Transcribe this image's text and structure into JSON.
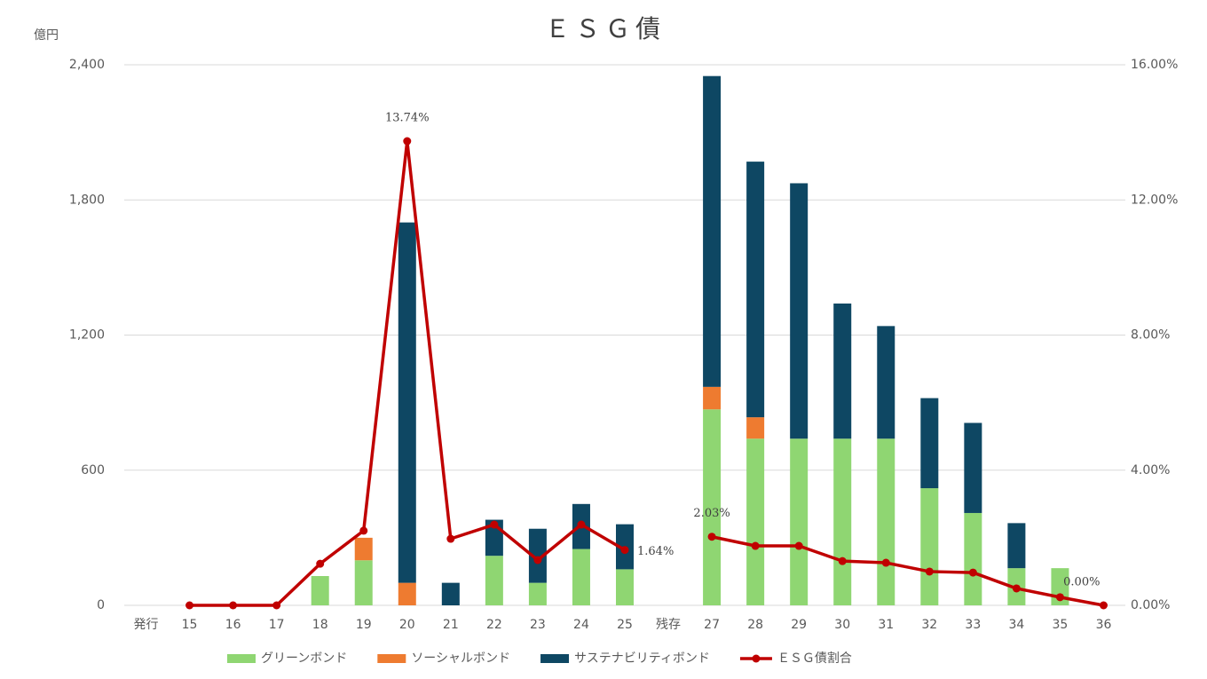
{
  "chart_data": {
    "type": "bar",
    "title": "ＥＳＧ債",
    "y_label": "億円",
    "categories": [
      "発行",
      "15",
      "16",
      "17",
      "18",
      "19",
      "20",
      "21",
      "22",
      "23",
      "24",
      "25",
      "残存",
      "27",
      "28",
      "29",
      "30",
      "31",
      "32",
      "33",
      "34",
      "35",
      "36"
    ],
    "series": [
      {
        "name": "グリーンボンド",
        "color": "#8fd672",
        "values": [
          null,
          null,
          null,
          null,
          130,
          200,
          null,
          null,
          220,
          100,
          250,
          160,
          null,
          870,
          740,
          740,
          740,
          740,
          520,
          410,
          165,
          165,
          null
        ]
      },
      {
        "name": "ソーシャルボンド",
        "color": "#ee7b30",
        "values": [
          null,
          null,
          null,
          null,
          null,
          100,
          100,
          null,
          null,
          null,
          null,
          null,
          null,
          100,
          95,
          null,
          null,
          null,
          null,
          null,
          null,
          null,
          null
        ]
      },
      {
        "name": "サステナビリティボンド",
        "color": "#0e4763",
        "values": [
          null,
          null,
          null,
          null,
          null,
          null,
          1600,
          100,
          160,
          240,
          200,
          200,
          null,
          1380,
          1135,
          1134,
          600,
          500,
          400,
          400,
          200,
          null,
          null
        ]
      },
      {
        "name": "ＥＳＧ債割合",
        "color": "#c00000",
        "type": "line",
        "axis": "y2",
        "values": [
          null,
          0,
          0,
          0,
          1.23,
          2.21,
          13.74,
          1.97,
          2.39,
          1.34,
          2.39,
          1.64,
          null,
          2.03,
          1.76,
          1.76,
          1.31,
          1.26,
          1.0,
          0.97,
          0.5,
          0.24,
          0
        ],
        "value_labels": [
          null,
          null,
          null,
          null,
          null,
          null,
          "13.74%",
          null,
          null,
          null,
          null,
          "1.64%",
          null,
          "2.03%",
          null,
          null,
          null,
          null,
          null,
          null,
          null,
          null,
          "0.00%"
        ]
      }
    ],
    "ylim": [
      0,
      2400
    ],
    "yticks": [
      0,
      600,
      {
        "value": 1200,
        "label": "1,200"
      },
      {
        "value": 1800,
        "label": "1,800"
      },
      {
        "value": 2400,
        "label": "2,400"
      }
    ],
    "y2lim": [
      0,
      16
    ],
    "y2ticks": [
      {
        "value": 0,
        "label": "0.00%"
      },
      {
        "value": 4,
        "label": "4.00%"
      },
      {
        "value": 8,
        "label": "8.00%"
      },
      {
        "value": 12,
        "label": "12.00%"
      },
      {
        "value": 16,
        "label": "16.00%"
      }
    ],
    "grid": true,
    "legend": "bottom"
  }
}
